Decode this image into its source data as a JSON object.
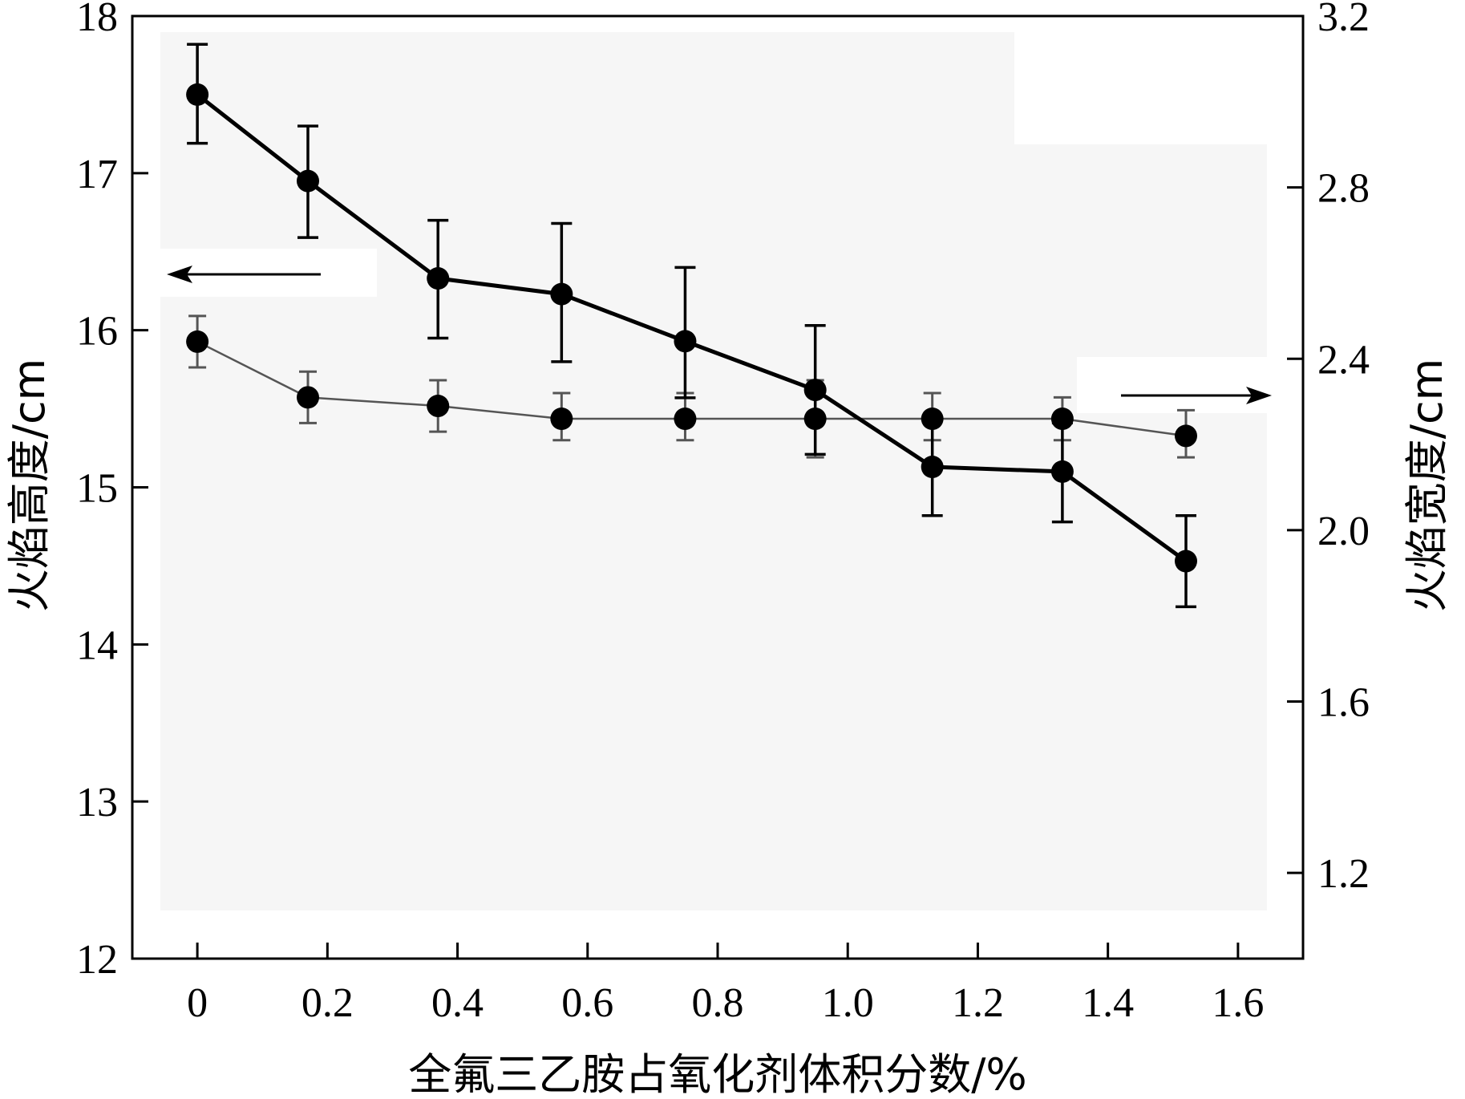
{
  "chart_data": {
    "type": "line",
    "xlabel": "全氟三乙胺占氧化剂体积分数/%",
    "ylabel_left": "火焰高度/cm",
    "ylabel_right": "火焰宽度/cm",
    "xlim": [
      -0.1,
      1.7
    ],
    "ylim_left": [
      12,
      18
    ],
    "ylim_right": [
      1.0,
      3.2
    ],
    "x_ticks": [
      0,
      0.2,
      0.4,
      0.6,
      0.8,
      1.0,
      1.2,
      1.4,
      1.6
    ],
    "x_tick_labels": [
      "0",
      "0.2",
      "0.4",
      "0.6",
      "0.8",
      "1.0",
      "1.2",
      "1.4",
      "1.6"
    ],
    "y_left_ticks": [
      12,
      13,
      14,
      15,
      16,
      17,
      18
    ],
    "y_left_tick_labels": [
      "12",
      "13",
      "14",
      "15",
      "16",
      "17",
      "18"
    ],
    "y_right_ticks": [
      1.2,
      1.6,
      2.0,
      2.4,
      2.8,
      3.2
    ],
    "y_right_tick_labels": [
      "1.2",
      "1.6",
      "2.0",
      "2.4",
      "2.8",
      "3.2"
    ],
    "grid": false,
    "series": [
      {
        "axis": "left",
        "x": [
          0,
          0.17,
          0.37,
          0.56,
          0.75,
          0.95,
          1.13,
          1.33,
          1.52
        ],
        "y": [
          17.5,
          16.95,
          16.33,
          16.23,
          15.93,
          15.62,
          15.13,
          15.1,
          14.53
        ],
        "err_low": [
          17.19,
          16.59,
          15.95,
          15.8,
          15.57,
          15.21,
          14.82,
          14.78,
          14.24
        ],
        "err_high": [
          17.82,
          17.3,
          16.7,
          16.68,
          16.4,
          16.03,
          15.45,
          15.41,
          14.82
        ],
        "color": "#000000"
      },
      {
        "axis": "right",
        "x": [
          0,
          0.17,
          0.37,
          0.56,
          0.75,
          0.95,
          1.13,
          1.33,
          1.52
        ],
        "y": [
          2.44,
          2.31,
          2.29,
          2.26,
          2.26,
          2.26,
          2.26,
          2.26,
          2.22
        ],
        "err_low": [
          2.38,
          2.25,
          2.23,
          2.21,
          2.21,
          2.17,
          2.21,
          2.21,
          2.17
        ],
        "err_high": [
          2.5,
          2.37,
          2.35,
          2.32,
          2.32,
          2.35,
          2.32,
          2.31,
          2.28
        ],
        "color": "#555555"
      }
    ]
  }
}
